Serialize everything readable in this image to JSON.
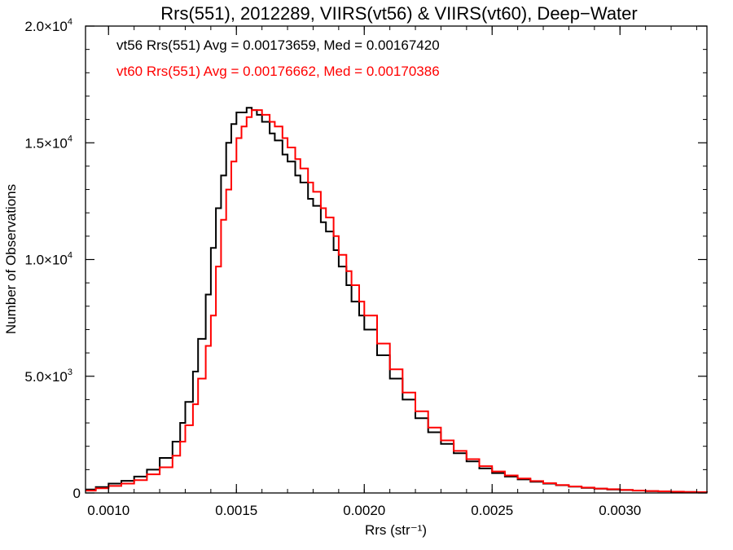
{
  "chart_data": {
    "type": "line",
    "step": true,
    "title": "Rrs(551), 2012289, VIIRS(vt56) & VIIRS(vt60), Deep−Water",
    "xlabel": "Rrs (str⁻¹)",
    "ylabel": "Number of Observations",
    "xlim": [
      0.00091,
      0.00334
    ],
    "ylim": [
      0,
      20000
    ],
    "x_ticks": [
      {
        "value": 0.001,
        "label": "0.0010"
      },
      {
        "value": 0.0015,
        "label": "0.0015"
      },
      {
        "value": 0.002,
        "label": "0.0020"
      },
      {
        "value": 0.0025,
        "label": "0.0025"
      },
      {
        "value": 0.003,
        "label": "0.0030"
      }
    ],
    "y_ticks": [
      {
        "value": 0,
        "label": "0",
        "exp": ""
      },
      {
        "value": 5000,
        "label": "5.0×10",
        "exp": "3"
      },
      {
        "value": 10000,
        "label": "1.0×10",
        "exp": "4"
      },
      {
        "value": 15000,
        "label": "1.5×10",
        "exp": "4"
      },
      {
        "value": 20000,
        "label": "2.0×10",
        "exp": "4"
      }
    ],
    "annotations": [
      "vt56 Rrs(551) Avg = 0.00173659, Med = 0.00167420",
      "vt60 Rrs(551) Avg = 0.00176662, Med = 0.00170386"
    ],
    "grid": false,
    "series": [
      {
        "color": "#000000",
        "points": [
          [
            0.00091,
            150
          ],
          [
            0.00095,
            250
          ],
          [
            0.001,
            400
          ],
          [
            0.00105,
            520
          ],
          [
            0.0011,
            700
          ],
          [
            0.00115,
            1000
          ],
          [
            0.0012,
            1500
          ],
          [
            0.00125,
            2200
          ],
          [
            0.00128,
            3000
          ],
          [
            0.0013,
            3900
          ],
          [
            0.00133,
            5200
          ],
          [
            0.00135,
            6600
          ],
          [
            0.00138,
            8500
          ],
          [
            0.0014,
            10500
          ],
          [
            0.00142,
            12200
          ],
          [
            0.00144,
            13600
          ],
          [
            0.00146,
            15000
          ],
          [
            0.00148,
            15800
          ],
          [
            0.0015,
            16300
          ],
          [
            0.00152,
            16300
          ],
          [
            0.00154,
            16500
          ],
          [
            0.00156,
            16400
          ],
          [
            0.00158,
            16200
          ],
          [
            0.0016,
            15900
          ],
          [
            0.00163,
            15400
          ],
          [
            0.00165,
            15100
          ],
          [
            0.00168,
            14500
          ],
          [
            0.0017,
            14200
          ],
          [
            0.00173,
            13600
          ],
          [
            0.00175,
            13300
          ],
          [
            0.00178,
            12600
          ],
          [
            0.0018,
            12300
          ],
          [
            0.00183,
            11600
          ],
          [
            0.00185,
            11200
          ],
          [
            0.00188,
            10400
          ],
          [
            0.0019,
            9700
          ],
          [
            0.00193,
            8900
          ],
          [
            0.00195,
            8200
          ],
          [
            0.00198,
            7600
          ],
          [
            0.002,
            7000
          ],
          [
            0.00205,
            5900
          ],
          [
            0.0021,
            4900
          ],
          [
            0.00215,
            4000
          ],
          [
            0.0022,
            3200
          ],
          [
            0.00225,
            2600
          ],
          [
            0.0023,
            2100
          ],
          [
            0.00235,
            1700
          ],
          [
            0.0024,
            1350
          ],
          [
            0.00245,
            1050
          ],
          [
            0.0025,
            850
          ],
          [
            0.00255,
            700
          ],
          [
            0.0026,
            580
          ],
          [
            0.00265,
            480
          ],
          [
            0.0027,
            400
          ],
          [
            0.00275,
            330
          ],
          [
            0.0028,
            270
          ],
          [
            0.00285,
            220
          ],
          [
            0.0029,
            180
          ],
          [
            0.00295,
            150
          ],
          [
            0.003,
            125
          ],
          [
            0.00305,
            100
          ],
          [
            0.0031,
            80
          ],
          [
            0.00315,
            65
          ],
          [
            0.0032,
            50
          ],
          [
            0.00325,
            40
          ],
          [
            0.0033,
            30
          ],
          [
            0.00334,
            25
          ]
        ]
      },
      {
        "color": "#ff0000",
        "points": [
          [
            0.00091,
            100
          ],
          [
            0.00095,
            200
          ],
          [
            0.001,
            300
          ],
          [
            0.00105,
            400
          ],
          [
            0.0011,
            550
          ],
          [
            0.00115,
            800
          ],
          [
            0.0012,
            1100
          ],
          [
            0.00125,
            1600
          ],
          [
            0.00128,
            2200
          ],
          [
            0.0013,
            2900
          ],
          [
            0.00133,
            3800
          ],
          [
            0.00135,
            4900
          ],
          [
            0.00138,
            6300
          ],
          [
            0.0014,
            7600
          ],
          [
            0.00142,
            9700
          ],
          [
            0.00144,
            11700
          ],
          [
            0.00146,
            13000
          ],
          [
            0.00148,
            14200
          ],
          [
            0.0015,
            15200
          ],
          [
            0.00152,
            15700
          ],
          [
            0.00154,
            16100
          ],
          [
            0.00156,
            16400
          ],
          [
            0.00158,
            16400
          ],
          [
            0.0016,
            16200
          ],
          [
            0.00163,
            15900
          ],
          [
            0.00165,
            15700
          ],
          [
            0.00168,
            15200
          ],
          [
            0.0017,
            14800
          ],
          [
            0.00173,
            14300
          ],
          [
            0.00175,
            13900
          ],
          [
            0.00178,
            13300
          ],
          [
            0.0018,
            12900
          ],
          [
            0.00183,
            12200
          ],
          [
            0.00185,
            11800
          ],
          [
            0.00188,
            11000
          ],
          [
            0.0019,
            10200
          ],
          [
            0.00193,
            9500
          ],
          [
            0.00195,
            8900
          ],
          [
            0.00198,
            8200
          ],
          [
            0.002,
            7600
          ],
          [
            0.00205,
            6400
          ],
          [
            0.0021,
            5300
          ],
          [
            0.00215,
            4300
          ],
          [
            0.0022,
            3500
          ],
          [
            0.00225,
            2800
          ],
          [
            0.0023,
            2250
          ],
          [
            0.00235,
            1800
          ],
          [
            0.0024,
            1450
          ],
          [
            0.00245,
            1150
          ],
          [
            0.0025,
            920
          ],
          [
            0.00255,
            750
          ],
          [
            0.0026,
            620
          ],
          [
            0.00265,
            510
          ],
          [
            0.0027,
            420
          ],
          [
            0.00275,
            340
          ],
          [
            0.0028,
            280
          ],
          [
            0.00285,
            230
          ],
          [
            0.0029,
            190
          ],
          [
            0.00295,
            160
          ],
          [
            0.003,
            130
          ],
          [
            0.00305,
            105
          ],
          [
            0.0031,
            85
          ],
          [
            0.00315,
            70
          ],
          [
            0.0032,
            55
          ],
          [
            0.00325,
            45
          ],
          [
            0.0033,
            35
          ],
          [
            0.00334,
            30
          ]
        ]
      }
    ]
  }
}
